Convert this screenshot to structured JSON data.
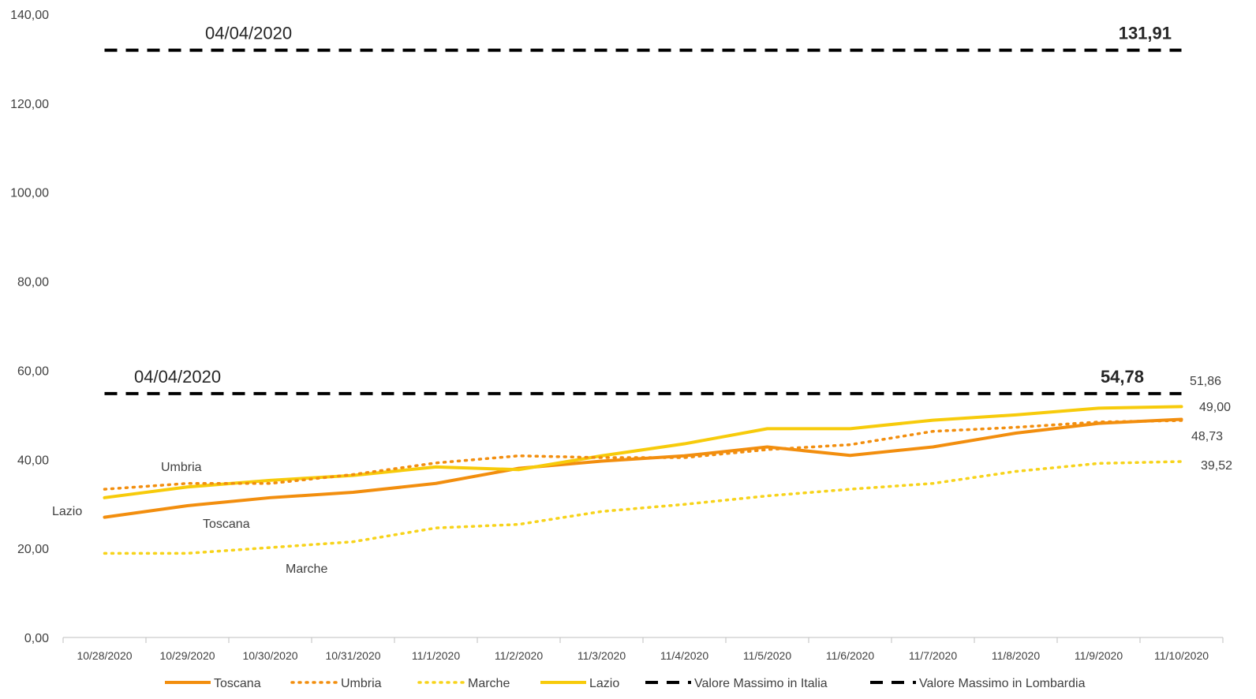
{
  "chart_data": {
    "type": "line",
    "categories": [
      "10/28/2020",
      "10/29/2020",
      "10/30/2020",
      "10/31/2020",
      "11/1/2020",
      "11/2/2020",
      "11/3/2020",
      "11/4/2020",
      "11/5/2020",
      "11/6/2020",
      "11/7/2020",
      "11/8/2020",
      "11/9/2020",
      "11/10/2020"
    ],
    "ylim": [
      0,
      140
    ],
    "yticks": [
      "0,00",
      "20,00",
      "40,00",
      "60,00",
      "80,00",
      "100,00",
      "120,00",
      "140,00"
    ],
    "grid": false,
    "legend_position": "bottom",
    "series": [
      {
        "name": "Toscana",
        "color": "#F28E0E",
        "style": "solid",
        "values": [
          27.0,
          29.6,
          31.4,
          32.6,
          34.6,
          38.0,
          39.6,
          40.8,
          42.8,
          40.9,
          42.8,
          45.9,
          48.1,
          49.0
        ],
        "label": "Toscana",
        "end_label": "49,00"
      },
      {
        "name": "Umbria",
        "color": "#F28E0E",
        "style": "dotted",
        "values": [
          33.3,
          34.6,
          34.6,
          36.6,
          39.2,
          40.8,
          40.4,
          40.4,
          42.2,
          43.3,
          46.3,
          47.2,
          48.4,
          48.73
        ],
        "label": "Umbria",
        "end_label": "48,73"
      },
      {
        "name": "Marche",
        "color": "#F7D31B",
        "style": "dotted",
        "values": [
          18.9,
          18.9,
          20.2,
          21.5,
          24.6,
          25.4,
          28.3,
          29.9,
          31.8,
          33.3,
          34.6,
          37.3,
          39.1,
          39.52
        ],
        "label": "Marche",
        "end_label": "39,52"
      },
      {
        "name": "Lazio",
        "color": "#F7CB0B",
        "style": "solid",
        "values": [
          31.4,
          33.8,
          35.3,
          36.4,
          38.3,
          37.7,
          40.8,
          43.5,
          46.9,
          46.9,
          48.8,
          50.0,
          51.5,
          51.86
        ],
        "label": "Lazio",
        "end_label": "51,86"
      }
    ],
    "reference_lines": [
      {
        "name": "Valore Massimo in Italia",
        "value": 131.91,
        "value_label": "131,91",
        "date_label": "04/04/2020",
        "color": "#000000"
      },
      {
        "name": "Valore Massimo in Lombardia",
        "value": 54.78,
        "value_label": "54,78",
        "date_label": "04/04/2020",
        "color": "#000000"
      }
    ]
  }
}
